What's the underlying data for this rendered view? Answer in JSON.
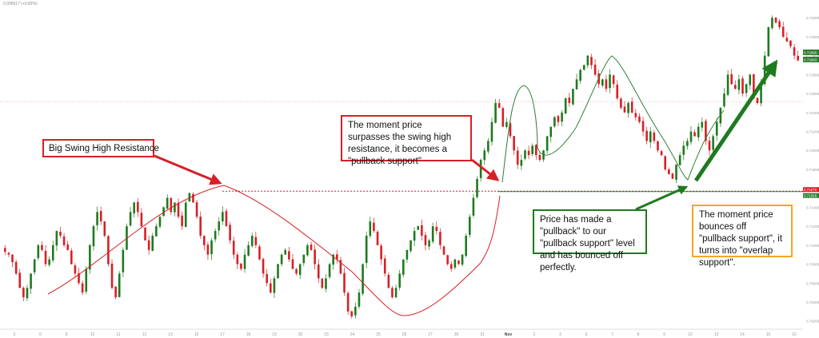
{
  "header": {
    "text": "0.006017 (+0.82%)"
  },
  "chart_data": {
    "type": "candlestick",
    "x_ticks": [
      "5",
      "6",
      "9",
      "10",
      "11",
      "12",
      "13",
      "16",
      "17",
      "18",
      "19",
      "20",
      "23",
      "24",
      "25",
      "26",
      "27",
      "30",
      "31",
      "Nov",
      "2",
      "3",
      "6",
      "7",
      "8",
      "9",
      "10",
      "13",
      "14",
      "15",
      "16"
    ],
    "y_ticks": [
      "0.73400",
      "0.73200",
      "0.73000",
      "0.72800",
      "0.72600",
      "0.72400",
      "0.72200",
      "0.72000",
      "0.71800",
      "0.71600",
      "0.71400",
      "0.71200",
      "0.71000",
      "0.70800",
      "0.70600",
      "0.70400",
      "0.70200"
    ],
    "ylim": [
      0.7013,
      0.7352
    ],
    "close_series": [
      0.7093,
      0.709,
      0.7082,
      0.707,
      0.7055,
      0.7045,
      0.7055,
      0.707,
      0.7085,
      0.71,
      0.7095,
      0.708,
      0.7085,
      0.71,
      0.7115,
      0.711,
      0.71,
      0.7095,
      0.708,
      0.707,
      0.706,
      0.705,
      0.7075,
      0.71,
      0.712,
      0.7135,
      0.7125,
      0.711,
      0.708,
      0.7055,
      0.7045,
      0.707,
      0.7095,
      0.712,
      0.7135,
      0.7145,
      0.7135,
      0.712,
      0.7105,
      0.7095,
      0.711,
      0.712,
      0.713,
      0.714,
      0.715,
      0.7135,
      0.7145,
      0.713,
      0.712,
      0.7145,
      0.7155,
      0.7145,
      0.713,
      0.711,
      0.71,
      0.709,
      0.7105,
      0.7115,
      0.7125,
      0.7135,
      0.712,
      0.7105,
      0.709,
      0.708,
      0.7075,
      0.709,
      0.71,
      0.711,
      0.71,
      0.7085,
      0.707,
      0.706,
      0.705,
      0.7065,
      0.708,
      0.709,
      0.7095,
      0.7085,
      0.7075,
      0.707,
      0.708,
      0.709,
      0.71,
      0.7095,
      0.708,
      0.7065,
      0.7055,
      0.7065,
      0.708,
      0.709,
      0.7085,
      0.707,
      0.705,
      0.703,
      0.7025,
      0.7035,
      0.705,
      0.708,
      0.711,
      0.7125,
      0.7115,
      0.71,
      0.7085,
      0.707,
      0.7055,
      0.7045,
      0.7055,
      0.707,
      0.7085,
      0.7095,
      0.7105,
      0.7115,
      0.712,
      0.711,
      0.71,
      0.7105,
      0.712,
      0.7115,
      0.71,
      0.709,
      0.708,
      0.7075,
      0.7085,
      0.708,
      0.709,
      0.711,
      0.713,
      0.715,
      0.717,
      0.719,
      0.72,
      0.721,
      0.723,
      0.725,
      0.7245,
      0.7225,
      0.723,
      0.7215,
      0.72,
      0.7185,
      0.719,
      0.72,
      0.7195,
      0.7205,
      0.7195,
      0.719,
      0.72,
      0.7215,
      0.7225,
      0.7235,
      0.723,
      0.724,
      0.7255,
      0.725,
      0.7265,
      0.7275,
      0.7285,
      0.729,
      0.73,
      0.729,
      0.728,
      0.727,
      0.7275,
      0.7265,
      0.728,
      0.727,
      0.7255,
      0.7245,
      0.724,
      0.725,
      0.724,
      0.7235,
      0.723,
      0.722,
      0.721,
      0.722,
      0.721,
      0.72,
      0.7195,
      0.718,
      0.7175,
      0.717,
      0.7185,
      0.7195,
      0.7205,
      0.721,
      0.722,
      0.7215,
      0.7225,
      0.723,
      0.721,
      0.72,
      0.7215,
      0.723,
      0.7245,
      0.726,
      0.728,
      0.727,
      0.7265,
      0.7275,
      0.726,
      0.727,
      0.728,
      0.7255,
      0.725,
      0.727,
      0.73,
      0.733,
      0.734,
      0.7335,
      0.733,
      0.732,
      0.7315,
      0.731,
      0.73,
      0.7295
    ],
    "levels": [
      {
        "value": 0.7157,
        "label": "0.71570",
        "color": "#d81f26",
        "style": "dashed"
      },
      {
        "value": 0.71566,
        "label": "0.71566",
        "color": "#2e7d32",
        "style": "solid"
      },
      {
        "value": 0.72515,
        "label": "",
        "color": "#e88",
        "style": "dotted"
      }
    ],
    "price_badges": [
      "0.72990",
      "0.72943"
    ],
    "colors": {
      "up": "#1e7a1e",
      "down": "#d81f26",
      "axis_text": "#999999"
    }
  },
  "annotations": [
    {
      "id": "swing-high",
      "text": "Big Swing High Resistance",
      "color": "red"
    },
    {
      "id": "surpass",
      "text": "The moment price surpasses the swing high resistance, it becomes a \"pullback support\"",
      "color": "red"
    },
    {
      "id": "pullback",
      "text": "Price has made a \"pullback\" to our \"pullback support\" level and has bounced off perfectly.",
      "color": "green"
    },
    {
      "id": "overlap",
      "text": "The moment price bounces off \"pullback support\", it turns into \"overlap support\".",
      "color": "orange"
    }
  ]
}
